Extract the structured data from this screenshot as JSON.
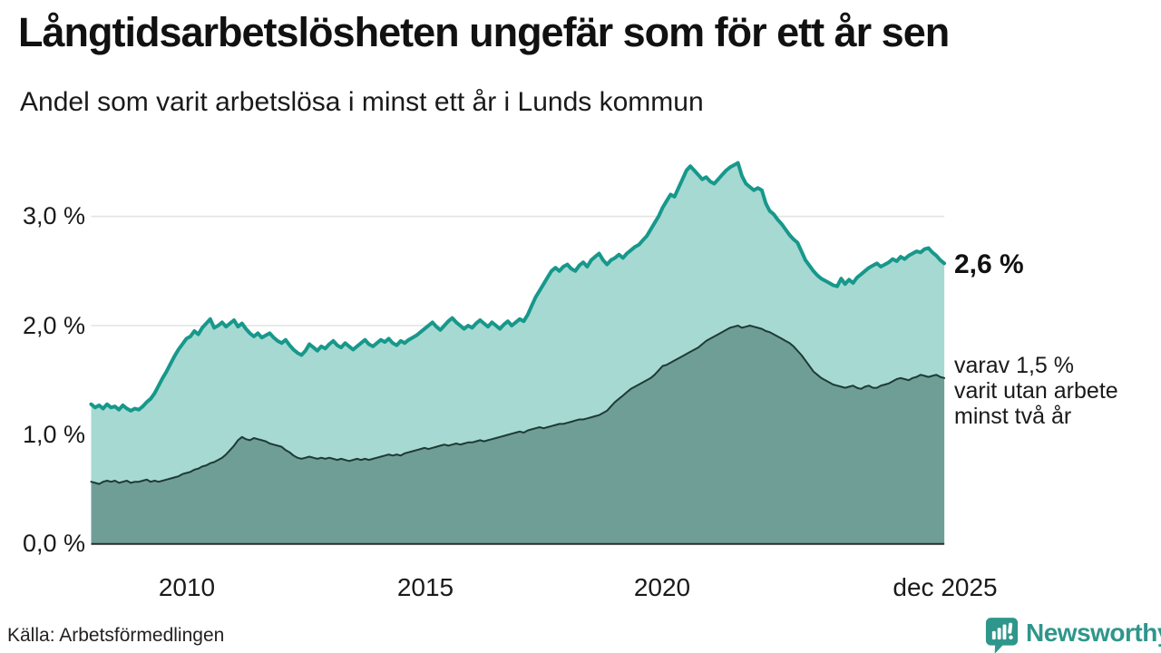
{
  "header": {
    "title": "Långtidsarbetslösheten ungefär som för ett år sen",
    "subtitle": "Andel som varit arbetslösa i minst ett år i Lunds kommun"
  },
  "annotations": {
    "latest": {
      "label": "2,6 %"
    },
    "secondary": {
      "lines": [
        "varav 1,5 %",
        "varit utan arbete",
        "minst två år"
      ]
    }
  },
  "footer": {
    "source": "Källa: Arbetsförmedlingen",
    "logo_text": "Newsworthy"
  },
  "colors": {
    "accent_teal": "#17988b",
    "light_fill": "#a6d9d2",
    "dark_fill": "#6f9e97",
    "dark_line": "#1e3b36",
    "grid": "#e3e3e3",
    "axis": "#2b2b2b",
    "logo_teal": "#2f968b",
    "text": "#1a1a1a"
  },
  "chart_data": {
    "type": "area",
    "title": "Långtidsarbetslösheten ungefär som för ett år sen",
    "subtitle": "Andel som varit arbetslösa i minst ett år i Lunds kommun",
    "source": "Källa: Arbetsförmedlingen",
    "xlabel": "",
    "ylabel": "%",
    "grid": true,
    "legend": "none (direct labels at line ends)",
    "x_unit": "months",
    "x_range": [
      2008.0,
      2025.917
    ],
    "y_range": [
      0,
      3.65
    ],
    "grid_color": "#e3e3e3",
    "axis_color": "#2b2b2b",
    "x_axis": {
      "ticks": [
        {
          "label": "2010",
          "year": 2010
        },
        {
          "label": "2015",
          "year": 2015
        },
        {
          "label": "2020",
          "year": 2020
        },
        {
          "label": "dec 2025",
          "year": 2025.917
        }
      ]
    },
    "y_axis": {
      "unit": "%",
      "ticks": [
        {
          "value": 0,
          "label": "0,0 %"
        },
        {
          "value": 1,
          "label": "1,0 %"
        },
        {
          "value": 2,
          "label": "2,0 %"
        },
        {
          "value": 3,
          "label": "3,0 %"
        }
      ]
    },
    "series": [
      {
        "name": "Andel arbetslösa minst ett år",
        "end_label": "2,6 %",
        "end_value": 2.6,
        "line_color": "#17988b",
        "fill_color": "#a6d9d2",
        "line_width": 4,
        "start_year": 2008.0,
        "step_months": 1,
        "values": [
          1.28,
          1.25,
          1.27,
          1.24,
          1.28,
          1.25,
          1.26,
          1.23,
          1.27,
          1.24,
          1.22,
          1.24,
          1.23,
          1.26,
          1.3,
          1.33,
          1.38,
          1.45,
          1.52,
          1.58,
          1.65,
          1.72,
          1.78,
          1.83,
          1.88,
          1.9,
          1.95,
          1.92,
          1.98,
          2.02,
          2.06,
          1.98,
          2.0,
          2.03,
          1.99,
          2.02,
          2.05,
          1.99,
          2.02,
          1.97,
          1.93,
          1.9,
          1.93,
          1.89,
          1.91,
          1.93,
          1.89,
          1.86,
          1.84,
          1.87,
          1.82,
          1.78,
          1.75,
          1.73,
          1.77,
          1.83,
          1.8,
          1.77,
          1.81,
          1.79,
          1.83,
          1.86,
          1.82,
          1.8,
          1.84,
          1.81,
          1.78,
          1.81,
          1.84,
          1.87,
          1.83,
          1.81,
          1.84,
          1.87,
          1.85,
          1.88,
          1.84,
          1.82,
          1.86,
          1.84,
          1.87,
          1.89,
          1.91,
          1.94,
          1.97,
          2.0,
          2.03,
          1.99,
          1.96,
          2.0,
          2.04,
          2.07,
          2.03,
          2.0,
          1.97,
          2.0,
          1.98,
          2.02,
          2.05,
          2.02,
          1.99,
          2.03,
          2.0,
          1.97,
          2.01,
          2.04,
          2.0,
          2.03,
          2.06,
          2.04,
          2.1,
          2.18,
          2.26,
          2.32,
          2.38,
          2.44,
          2.5,
          2.53,
          2.5,
          2.54,
          2.56,
          2.52,
          2.5,
          2.55,
          2.58,
          2.54,
          2.6,
          2.63,
          2.66,
          2.6,
          2.56,
          2.6,
          2.62,
          2.65,
          2.62,
          2.66,
          2.69,
          2.72,
          2.74,
          2.78,
          2.82,
          2.88,
          2.94,
          3.0,
          3.08,
          3.14,
          3.2,
          3.18,
          3.26,
          3.34,
          3.42,
          3.46,
          3.42,
          3.38,
          3.34,
          3.36,
          3.32,
          3.3,
          3.34,
          3.38,
          3.42,
          3.45,
          3.47,
          3.49,
          3.37,
          3.3,
          3.27,
          3.24,
          3.26,
          3.24,
          3.12,
          3.05,
          3.02,
          2.97,
          2.93,
          2.88,
          2.83,
          2.79,
          2.76,
          2.68,
          2.6,
          2.55,
          2.5,
          2.46,
          2.43,
          2.41,
          2.39,
          2.37,
          2.36,
          2.43,
          2.38,
          2.42,
          2.39,
          2.44,
          2.47,
          2.5,
          2.53,
          2.55,
          2.57,
          2.54,
          2.56,
          2.58,
          2.61,
          2.59,
          2.63,
          2.61,
          2.64,
          2.66,
          2.68,
          2.67,
          2.7,
          2.71,
          2.67,
          2.64,
          2.6,
          2.57
        ]
      },
      {
        "name": "varav utan arbete minst två år",
        "end_label": "varav 1,5 % varit utan arbete minst två år",
        "end_value": 1.5,
        "line_color": "#1e3b36",
        "fill_color": "#6f9e97",
        "line_width": 2,
        "start_year": 2008.0,
        "step_months": 1,
        "values": [
          0.57,
          0.56,
          0.55,
          0.57,
          0.58,
          0.57,
          0.58,
          0.56,
          0.57,
          0.58,
          0.56,
          0.57,
          0.57,
          0.58,
          0.59,
          0.57,
          0.58,
          0.57,
          0.58,
          0.59,
          0.6,
          0.61,
          0.62,
          0.64,
          0.65,
          0.66,
          0.68,
          0.69,
          0.71,
          0.72,
          0.74,
          0.75,
          0.77,
          0.79,
          0.82,
          0.86,
          0.9,
          0.95,
          0.98,
          0.96,
          0.95,
          0.97,
          0.96,
          0.95,
          0.94,
          0.92,
          0.91,
          0.9,
          0.89,
          0.86,
          0.84,
          0.81,
          0.79,
          0.78,
          0.79,
          0.8,
          0.79,
          0.78,
          0.79,
          0.78,
          0.79,
          0.78,
          0.77,
          0.78,
          0.77,
          0.76,
          0.77,
          0.78,
          0.77,
          0.78,
          0.77,
          0.78,
          0.79,
          0.8,
          0.81,
          0.82,
          0.81,
          0.82,
          0.81,
          0.83,
          0.84,
          0.85,
          0.86,
          0.87,
          0.88,
          0.87,
          0.88,
          0.89,
          0.9,
          0.91,
          0.9,
          0.91,
          0.92,
          0.91,
          0.92,
          0.93,
          0.93,
          0.94,
          0.95,
          0.94,
          0.95,
          0.96,
          0.97,
          0.98,
          0.99,
          1.0,
          1.01,
          1.02,
          1.03,
          1.02,
          1.04,
          1.05,
          1.06,
          1.07,
          1.06,
          1.07,
          1.08,
          1.09,
          1.1,
          1.1,
          1.11,
          1.12,
          1.13,
          1.14,
          1.14,
          1.15,
          1.16,
          1.17,
          1.18,
          1.2,
          1.22,
          1.26,
          1.3,
          1.33,
          1.36,
          1.39,
          1.42,
          1.44,
          1.46,
          1.48,
          1.5,
          1.52,
          1.55,
          1.59,
          1.63,
          1.64,
          1.66,
          1.68,
          1.7,
          1.72,
          1.74,
          1.76,
          1.78,
          1.8,
          1.83,
          1.86,
          1.88,
          1.9,
          1.92,
          1.94,
          1.96,
          1.98,
          1.99,
          2.0,
          1.98,
          1.99,
          2.0,
          1.99,
          1.98,
          1.97,
          1.95,
          1.94,
          1.92,
          1.9,
          1.88,
          1.86,
          1.84,
          1.81,
          1.77,
          1.73,
          1.68,
          1.63,
          1.58,
          1.55,
          1.52,
          1.5,
          1.48,
          1.46,
          1.45,
          1.44,
          1.43,
          1.44,
          1.45,
          1.43,
          1.42,
          1.44,
          1.45,
          1.43,
          1.43,
          1.45,
          1.46,
          1.47,
          1.49,
          1.51,
          1.52,
          1.51,
          1.5,
          1.52,
          1.53,
          1.55,
          1.54,
          1.53,
          1.54,
          1.55,
          1.53,
          1.52
        ]
      }
    ]
  }
}
